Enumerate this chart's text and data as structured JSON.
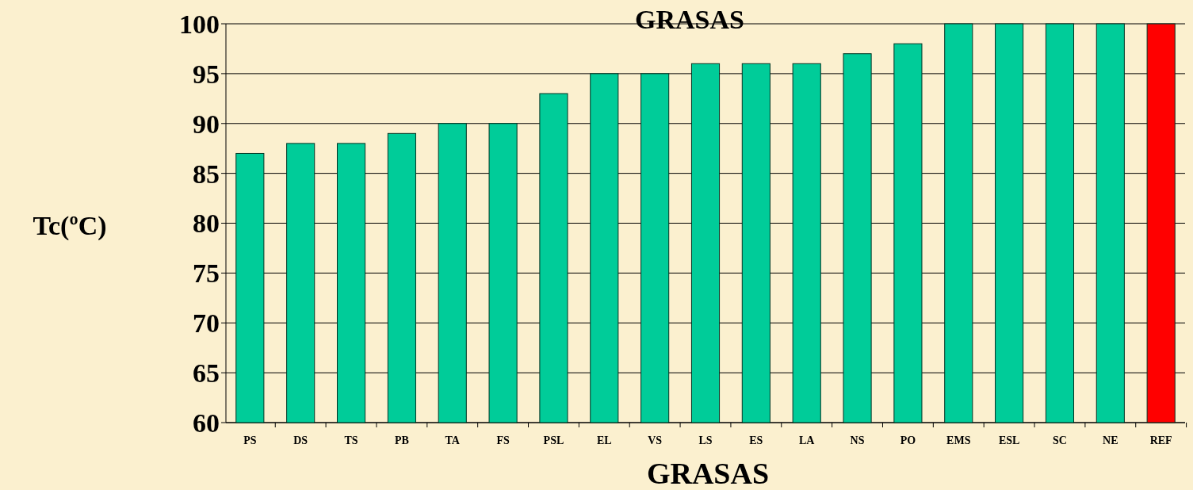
{
  "chart_data": {
    "type": "bar",
    "title": "GRASAS",
    "xlabel": "GRASAS",
    "ylabel": "Tc(ºC)",
    "categories": [
      "PS",
      "DS",
      "TS",
      "PB",
      "TA",
      "FS",
      "PSL",
      "EL",
      "VS",
      "LS",
      "ES",
      "LA",
      "NS",
      "PO",
      "EMS",
      "ESL",
      "SC",
      "NE",
      "REF"
    ],
    "values": [
      87,
      88,
      88,
      89,
      90,
      90,
      93,
      95,
      95,
      96,
      96,
      96,
      97,
      98,
      100,
      100,
      100,
      100,
      100
    ],
    "colors": [
      "#00cc99",
      "#00cc99",
      "#00cc99",
      "#00cc99",
      "#00cc99",
      "#00cc99",
      "#00cc99",
      "#00cc99",
      "#00cc99",
      "#00cc99",
      "#00cc99",
      "#00cc99",
      "#00cc99",
      "#00cc99",
      "#00cc99",
      "#00cc99",
      "#00cc99",
      "#00cc99",
      "#ff0000"
    ],
    "ylim": [
      60,
      100
    ],
    "yticks": [
      60,
      65,
      70,
      75,
      80,
      85,
      90,
      95,
      100
    ],
    "grid": "y"
  }
}
